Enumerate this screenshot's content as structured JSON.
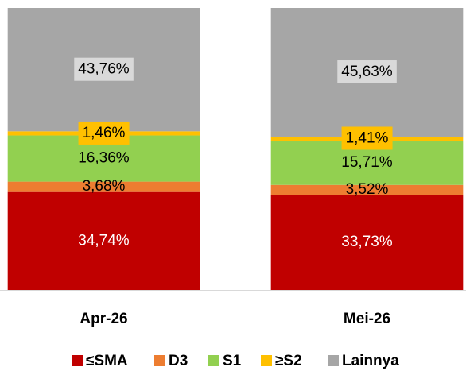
{
  "chart_data": {
    "type": "stacked_bar",
    "categories": [
      "Apr-26",
      "Mei-26"
    ],
    "ylim": [
      0,
      100
    ],
    "series": [
      {
        "name": "≤SMA",
        "color": "#c00000",
        "values": [
          34.74,
          33.73
        ],
        "value_labels": [
          "34,74%",
          "33,73%"
        ]
      },
      {
        "name": "D3",
        "color": "#ed7d31",
        "values": [
          3.68,
          3.52
        ],
        "value_labels": [
          "3,68%",
          "3,52%"
        ]
      },
      {
        "name": "S1",
        "color": "#92d050",
        "values": [
          16.36,
          15.71
        ],
        "value_labels": [
          "16,36%",
          "15,71%"
        ]
      },
      {
        "name": "≥S2",
        "color": "#ffc000",
        "values": [
          1.46,
          1.41
        ],
        "value_labels": [
          "1,46%",
          "1,41%"
        ]
      },
      {
        "name": "Lainnya",
        "color": "#a6a6a6",
        "values": [
          43.76,
          45.63
        ],
        "value_labels": [
          "43,76%",
          "45,63%"
        ]
      }
    ],
    "legend": "bottom"
  }
}
